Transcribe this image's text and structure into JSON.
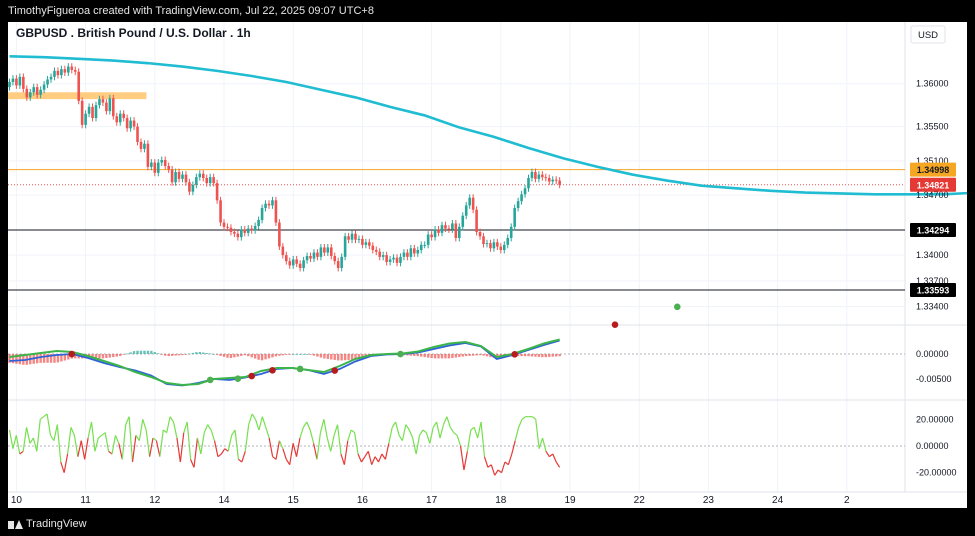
{
  "header": {
    "attribution": "TimothyFigueroa created with TradingView.com, Jul 22, 2025 09:07 UTC+8"
  },
  "footer": {
    "brand": "TradingView"
  },
  "chart_data": {
    "type": "candlestick",
    "title": "GBPUSD . British Pound / U.S. Dollar . 1h",
    "currency": "USD",
    "colors": {
      "up": "#26a69a",
      "down": "#ef5350",
      "ma": "#1fbcd2",
      "macd_line": "#2e62d9",
      "signal_line": "#3bb44a",
      "cross_down": "#b71c1c",
      "cross_up": "#4caf50",
      "osc_up": "#76e04f",
      "osc_down": "#e53935",
      "zone": "#ffcc80",
      "line_1_3499": "#f5a623"
    },
    "price_axis": {
      "ylim": [
        1.3322,
        1.3672
      ],
      "ticks": [
        "1.36000",
        "1.35500",
        "1.35100",
        "1.34700",
        "1.34000",
        "1.33700",
        "1.33400"
      ],
      "tick_values": [
        1.36,
        1.355,
        1.351,
        1.347,
        1.34,
        1.337,
        1.334
      ]
    },
    "x_axis": {
      "labels": [
        "10",
        "11",
        "12",
        "14",
        "15",
        "16",
        "17",
        "18",
        "19",
        "22",
        "23",
        "24",
        "2"
      ],
      "label_bars": [
        2,
        22,
        42,
        62,
        82,
        102,
        122,
        142,
        162,
        182,
        202,
        222,
        242
      ]
    },
    "horizontal_lines": [
      {
        "value": 1.34998,
        "label": "1.34998",
        "style": "solid"
      },
      {
        "value": 1.34821,
        "label": "1.34821",
        "style": "dotted"
      },
      {
        "value": 1.34294,
        "label": "1.34294",
        "style": "solid"
      },
      {
        "value": 1.33593,
        "label": "1.33593",
        "style": "solid"
      }
    ],
    "zone": {
      "from_bar": 0,
      "to_bar": 40,
      "low": 1.3582,
      "high": 1.359
    },
    "candles_close": [
      1.3602,
      1.3606,
      1.3598,
      1.3608,
      1.3594,
      1.3584,
      1.359,
      1.3596,
      1.3587,
      1.3593,
      1.3599,
      1.3605,
      1.3608,
      1.3615,
      1.361,
      1.3617,
      1.3613,
      1.362,
      1.3616,
      1.3614,
      1.358,
      1.3552,
      1.3565,
      1.3573,
      1.356,
      1.3575,
      1.3582,
      1.3578,
      1.3568,
      1.3583,
      1.3562,
      1.3555,
      1.3565,
      1.356,
      1.3548,
      1.3557,
      1.355,
      1.3532,
      1.3524,
      1.353,
      1.3503,
      1.3508,
      1.3496,
      1.3508,
      1.3511,
      1.3504,
      1.35,
      1.3485,
      1.3497,
      1.3489,
      1.3494,
      1.3485,
      1.3474,
      1.3482,
      1.3491,
      1.3495,
      1.349,
      1.3484,
      1.3491,
      1.3484,
      1.3464,
      1.3438,
      1.3433,
      1.3432,
      1.3427,
      1.3425,
      1.3421,
      1.343,
      1.3426,
      1.3431,
      1.3429,
      1.3434,
      1.3441,
      1.3455,
      1.346,
      1.3458,
      1.3464,
      1.3438,
      1.341,
      1.34,
      1.3393,
      1.3388,
      1.3395,
      1.339,
      1.3385,
      1.3394,
      1.3399,
      1.3396,
      1.3403,
      1.3398,
      1.3409,
      1.3403,
      1.3409,
      1.3399,
      1.3393,
      1.3385,
      1.3398,
      1.3422,
      1.3418,
      1.3425,
      1.3418,
      1.3419,
      1.3412,
      1.3415,
      1.3411,
      1.3406,
      1.3404,
      1.3398,
      1.34,
      1.3392,
      1.3395,
      1.3397,
      1.3391,
      1.3398,
      1.3403,
      1.3398,
      1.3408,
      1.3402,
      1.3406,
      1.3412,
      1.3412,
      1.3424,
      1.3421,
      1.343,
      1.3426,
      1.3435,
      1.3431,
      1.343,
      1.3437,
      1.342,
      1.3433,
      1.3446,
      1.3458,
      1.3467,
      1.3453,
      1.3427,
      1.3422,
      1.3413,
      1.3414,
      1.3408,
      1.3415,
      1.341,
      1.3406,
      1.3412,
      1.342,
      1.3433,
      1.3455,
      1.3463,
      1.3471,
      1.3478,
      1.349,
      1.3497,
      1.3489,
      1.3494,
      1.3491,
      1.349,
      1.3486,
      1.3488,
      1.3487,
      1.34821
    ],
    "moving_average": [
      1.3632,
      1.3631,
      1.3629,
      1.3627,
      1.3624,
      1.362,
      1.3615,
      1.3609,
      1.3602,
      1.3593,
      1.3584,
      1.3573,
      1.3563,
      1.3549,
      1.3538,
      1.3525,
      1.3513,
      1.3503,
      1.3494,
      1.3487,
      1.3481,
      1.3478,
      1.3475,
      1.3473,
      1.3472,
      1.3471,
      1.3471,
      1.3471,
      1.3473
    ],
    "moving_average_bars": [
      0,
      10,
      20,
      30,
      40,
      50,
      60,
      70,
      80,
      90,
      100,
      110,
      120,
      130,
      140,
      150,
      160,
      170,
      180,
      190,
      200,
      210,
      220,
      230,
      240,
      250,
      260,
      270,
      280
    ],
    "macd_panel": {
      "tick_labels": [
        "0.00000",
        "-0.00500"
      ],
      "tick_values": [
        0.0,
        -0.005
      ],
      "ylim": [
        -0.0086,
        0.0044
      ],
      "macd": [
        -0.0014,
        -0.0012,
        -0.0006,
        -0.0002,
        0.0,
        -0.0008,
        -0.0018,
        -0.0026,
        -0.0033,
        -0.0043,
        -0.006,
        -0.0063,
        -0.0058,
        -0.005,
        -0.0052,
        -0.0047,
        -0.004,
        -0.003,
        -0.0028,
        -0.0032,
        -0.004,
        -0.003,
        -0.0015,
        -0.0004,
        -0.0001,
        0.0,
        0.0003,
        0.001,
        0.0017,
        0.0022,
        0.0015,
        -0.001,
        -0.0002,
        0.0008,
        0.0018,
        0.0027
      ],
      "signal": [
        -0.0006,
        -0.0002,
        0.0002,
        0.0006,
        0.0004,
        -0.0004,
        -0.0014,
        -0.0024,
        -0.0036,
        -0.0046,
        -0.0058,
        -0.0062,
        -0.006,
        -0.005,
        -0.0048,
        -0.0046,
        -0.0034,
        -0.0028,
        -0.0028,
        -0.0032,
        -0.0036,
        -0.0024,
        -0.001,
        -0.0002,
        0.0,
        0.0001,
        0.0005,
        0.0014,
        0.0021,
        0.0024,
        0.0016,
        -0.0006,
        0.0,
        0.001,
        0.0021,
        0.0029
      ],
      "crosses": [
        {
          "bar": 18,
          "dir": "down"
        },
        {
          "bar": 58,
          "dir": "up"
        },
        {
          "bar": 66,
          "dir": "up"
        },
        {
          "bar": 70,
          "dir": "down"
        },
        {
          "bar": 76,
          "dir": "down"
        },
        {
          "bar": 84,
          "dir": "up"
        },
        {
          "bar": 94,
          "dir": "down"
        },
        {
          "bar": 113,
          "dir": "up"
        },
        {
          "bar": 146,
          "dir": "down"
        },
        {
          "bar": 175,
          "dir": "down"
        },
        {
          "bar": 193,
          "dir": "up"
        }
      ]
    },
    "osc_panel": {
      "tick_labels": [
        "20.00000",
        "0.00000",
        "-20.00000"
      ],
      "tick_values": [
        20,
        0,
        -20
      ],
      "ylim": [
        -30,
        30
      ],
      "values": [
        12,
        -2,
        8,
        -6,
        -4,
        14,
        2,
        6,
        -4,
        20,
        22,
        24,
        8,
        4,
        16,
        -12,
        -20,
        -6,
        14,
        8,
        -8,
        4,
        -10,
        6,
        18,
        -4,
        6,
        8,
        10,
        -4,
        -6,
        8,
        2,
        -10,
        16,
        22,
        -12,
        8,
        4,
        20,
        12,
        -8,
        6,
        4,
        -8,
        12,
        10,
        22,
        18,
        6,
        -12,
        10,
        18,
        -10,
        -16,
        6,
        -6,
        10,
        16,
        12,
        4,
        -8,
        -6,
        -2,
        -4,
        8,
        12,
        -10,
        -12,
        -4,
        16,
        24,
        20,
        12,
        22,
        14,
        6,
        -8,
        -10,
        4,
        -2,
        -10,
        -14,
        2,
        -8,
        6,
        14,
        18,
        12,
        2,
        -10,
        10,
        20,
        6,
        -4,
        8,
        16,
        -6,
        -14,
        4,
        12,
        10,
        -6,
        -12,
        -8,
        -4,
        -14,
        -8,
        -12,
        -6,
        -10,
        2,
        14,
        18,
        8,
        4,
        16,
        12,
        6,
        -6,
        8,
        12,
        10,
        2,
        14,
        18,
        6,
        16,
        22,
        14,
        10,
        8,
        0,
        -18,
        -4,
        12,
        14,
        6,
        18,
        -8,
        -16,
        -14,
        -22,
        -18,
        -20,
        -12,
        -14,
        -6,
        4,
        14,
        20,
        22,
        22,
        22,
        20,
        -2,
        6,
        -4,
        -8,
        -6,
        -12,
        -16
      ]
    }
  }
}
